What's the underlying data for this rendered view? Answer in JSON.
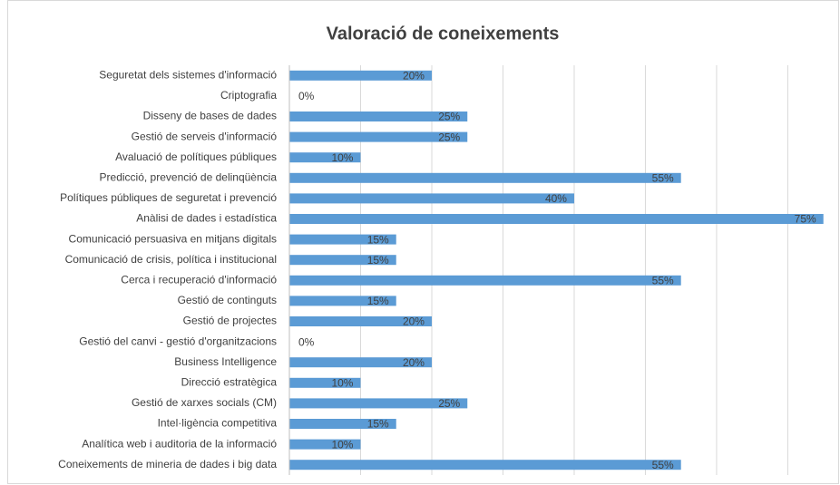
{
  "chart_data": {
    "type": "bar",
    "orientation": "horizontal",
    "title": "Valoració de coneixements",
    "categories": [
      "Seguretat dels sistemes d'informació",
      "Criptografia",
      "Disseny de bases de dades",
      "Gestió de serveis d'informació",
      "Avaluació de polítiques públiques",
      "Predicció, prevenció de delinqüència",
      "Polítiques públiques de seguretat i prevenció",
      "Anàlisi de dades i estadística",
      "Comunicació persuasiva en mitjans digitals",
      "Comunicació de crisis, política i institucional",
      "Cerca i recuperació d'informació",
      "Gestió de continguts",
      "Gestió de projectes",
      "Gestió del canvi - gestió d'organitzacions",
      "Business Intelligence",
      "Direcció estratègica",
      "Gestió de xarxes socials (CM)",
      "Intel·ligència competitiva",
      "Analítica web i auditoria de la informació",
      "Coneixements de mineria de dades i big data"
    ],
    "values": [
      20,
      0,
      25,
      25,
      10,
      55,
      40,
      75,
      15,
      15,
      55,
      15,
      20,
      0,
      20,
      10,
      25,
      15,
      10,
      55
    ],
    "value_labels": [
      "20%",
      "0%",
      "25%",
      "25%",
      "10%",
      "55%",
      "40%",
      "75%",
      "15%",
      "15%",
      "55%",
      "15%",
      "20%",
      "0%",
      "20%",
      "10%",
      "25%",
      "15%",
      "10%",
      "55%"
    ],
    "color": "#5b9bd5",
    "xlim": [
      0,
      75
    ],
    "xticks": [
      0,
      10,
      20,
      30,
      40,
      50,
      60,
      70
    ],
    "grid": true
  }
}
